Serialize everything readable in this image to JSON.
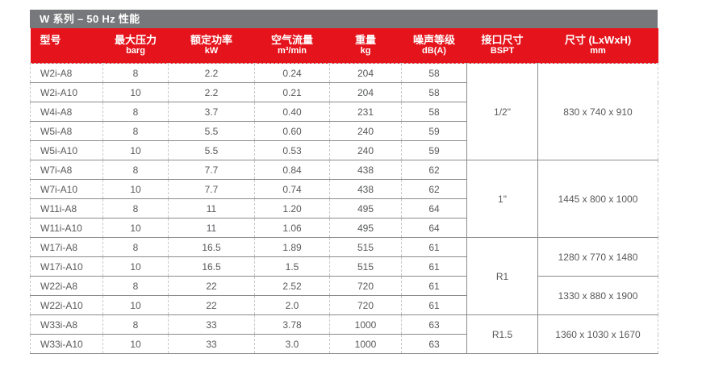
{
  "title_bar": {
    "title": "W 系列 – 50 Hz 性能"
  },
  "colors": {
    "title_bar_bg": "#77787B",
    "header_bg": "#E5141C",
    "header_text": "#FFFFFF",
    "body_text": "#58595B",
    "solid_border": "#8C8C8C",
    "dashed_border": "#C8C8C8"
  },
  "table": {
    "columns": [
      {
        "label": "型号",
        "unit": ""
      },
      {
        "label": "最大压力",
        "unit": "barg"
      },
      {
        "label": "额定功率",
        "unit": "kW"
      },
      {
        "label": "空气流量",
        "unit": "m³/min"
      },
      {
        "label": "重量",
        "unit": "kg"
      },
      {
        "label": "噪声等级",
        "unit": "dB(A)"
      },
      {
        "label": "接口尺寸",
        "unit": "BSPT"
      },
      {
        "label": "尺寸 (LxWxH)",
        "unit": "mm"
      }
    ],
    "groups": [
      {
        "connection": "1/2\"",
        "dimension_blocks": [
          {
            "span": 5,
            "value": "830 x 740 x 910"
          }
        ],
        "rows": [
          {
            "model": "W2i-A8",
            "pressure": "8",
            "power": "2.2",
            "airflow": "0.24",
            "weight": "204",
            "noise": "58"
          },
          {
            "model": "W2i-A10",
            "pressure": "10",
            "power": "2.2",
            "airflow": "0.21",
            "weight": "204",
            "noise": "58"
          },
          {
            "model": "W4i-A8",
            "pressure": "8",
            "power": "3.7",
            "airflow": "0.40",
            "weight": "231",
            "noise": "58"
          },
          {
            "model": "W5i-A8",
            "pressure": "8",
            "power": "5.5",
            "airflow": "0.60",
            "weight": "240",
            "noise": "59"
          },
          {
            "model": "W5i-A10",
            "pressure": "10",
            "power": "5.5",
            "airflow": "0.53",
            "weight": "240",
            "noise": "59"
          }
        ]
      },
      {
        "connection": "1\"",
        "dimension_blocks": [
          {
            "span": 4,
            "value": "1445 x 800 x 1000"
          }
        ],
        "rows": [
          {
            "model": "W7i-A8",
            "pressure": "8",
            "power": "7.7",
            "airflow": "0.84",
            "weight": "438",
            "noise": "62"
          },
          {
            "model": "W7i-A10",
            "pressure": "10",
            "power": "7.7",
            "airflow": "0.74",
            "weight": "438",
            "noise": "62"
          },
          {
            "model": "W11i-A8",
            "pressure": "8",
            "power": "11",
            "airflow": "1.20",
            "weight": "495",
            "noise": "64"
          },
          {
            "model": "W11i-A10",
            "pressure": "10",
            "power": "11",
            "airflow": "1.06",
            "weight": "495",
            "noise": "64"
          }
        ]
      },
      {
        "connection": "R1",
        "dimension_blocks": [
          {
            "span": 2,
            "value": "1280 x 770 x 1480"
          },
          {
            "span": 2,
            "value": "1330 x 880 x 1900"
          }
        ],
        "rows": [
          {
            "model": "W17i-A8",
            "pressure": "8",
            "power": "16.5",
            "airflow": "1.89",
            "weight": "515",
            "noise": "61"
          },
          {
            "model": "W17i-A10",
            "pressure": "10",
            "power": "16.5",
            "airflow": "1.5",
            "weight": "515",
            "noise": "61"
          },
          {
            "model": "W22i-A8",
            "pressure": "8",
            "power": "22",
            "airflow": "2.52",
            "weight": "720",
            "noise": "61"
          },
          {
            "model": "W22i-A10",
            "pressure": "10",
            "power": "22",
            "airflow": "2.0",
            "weight": "720",
            "noise": "61"
          }
        ]
      },
      {
        "connection": "R1.5",
        "dimension_blocks": [
          {
            "span": 2,
            "value": "1360 x 1030 x 1670"
          }
        ],
        "rows": [
          {
            "model": "W33i-A8",
            "pressure": "8",
            "power": "33",
            "airflow": "3.78",
            "weight": "1000",
            "noise": "63"
          },
          {
            "model": "W33i-A10",
            "pressure": "10",
            "power": "33",
            "airflow": "3.0",
            "weight": "1000",
            "noise": "63"
          }
        ]
      }
    ]
  }
}
